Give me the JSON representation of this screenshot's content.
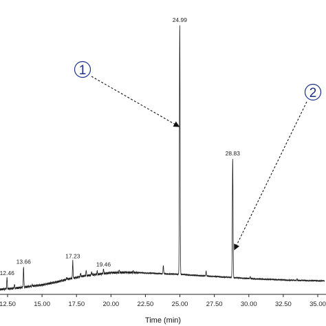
{
  "chart_data": {
    "type": "line",
    "xlabel": "Time (min)",
    "ylabel": "",
    "xlim": [
      11.0,
      35.5
    ],
    "ylim": [
      0,
      100
    ],
    "x_ticks": [
      "12.50",
      "15.00",
      "17.50",
      "20.00",
      "22.50",
      "25.00",
      "27.50",
      "30.00",
      "32.50",
      "35.00"
    ],
    "peaks": [
      {
        "label": "12.46",
        "x": 12.46,
        "y": 5
      },
      {
        "label": "13.66",
        "x": 13.66,
        "y": 9
      },
      {
        "label": "17.23",
        "x": 17.23,
        "y": 11
      },
      {
        "label": "19.46",
        "x": 19.46,
        "y": 8
      },
      {
        "label": "24.99",
        "x": 24.99,
        "y": 96
      },
      {
        "label": "28.83",
        "x": 28.83,
        "y": 48
      }
    ],
    "callouts": [
      {
        "label": "1",
        "target_peak": "24.99"
      },
      {
        "label": "2",
        "target_peak": "28.83"
      }
    ],
    "baseline": [
      [
        11.0,
        0.4
      ],
      [
        12.0,
        0.8
      ],
      [
        13.0,
        1.2
      ],
      [
        14.0,
        1.8
      ],
      [
        15.0,
        2.4
      ],
      [
        16.0,
        3.4
      ],
      [
        17.0,
        4.6
      ],
      [
        18.0,
        5.6
      ],
      [
        19.0,
        6.2
      ],
      [
        20.0,
        6.8
      ],
      [
        21.0,
        6.9
      ],
      [
        22.0,
        6.8
      ],
      [
        23.0,
        6.6
      ],
      [
        24.0,
        6.4
      ],
      [
        25.0,
        6.2
      ],
      [
        26.0,
        5.9
      ],
      [
        27.0,
        5.6
      ],
      [
        28.0,
        5.3
      ],
      [
        29.0,
        5.0
      ],
      [
        30.0,
        4.7
      ],
      [
        31.0,
        4.5
      ],
      [
        32.0,
        4.3
      ],
      [
        33.0,
        4.1
      ],
      [
        34.0,
        4.0
      ],
      [
        35.0,
        3.9
      ],
      [
        35.5,
        3.9
      ]
    ],
    "minor_peaks": [
      [
        11.7,
        2.0
      ],
      [
        12.46,
        5
      ],
      [
        13.0,
        2.5
      ],
      [
        13.66,
        9
      ],
      [
        14.3,
        2.5
      ],
      [
        15.2,
        2.5
      ],
      [
        16.1,
        3.5
      ],
      [
        16.8,
        5.2
      ],
      [
        17.23,
        11
      ],
      [
        17.8,
        6.6
      ],
      [
        18.2,
        7.6
      ],
      [
        18.6,
        7.2
      ],
      [
        19.0,
        7.4
      ],
      [
        19.46,
        8
      ],
      [
        20.6,
        7.6
      ],
      [
        21.6,
        7.4
      ],
      [
        23.8,
        9.5
      ],
      [
        26.9,
        7.4
      ],
      [
        30.1,
        5.3
      ],
      [
        33.5,
        4.6
      ]
    ]
  }
}
